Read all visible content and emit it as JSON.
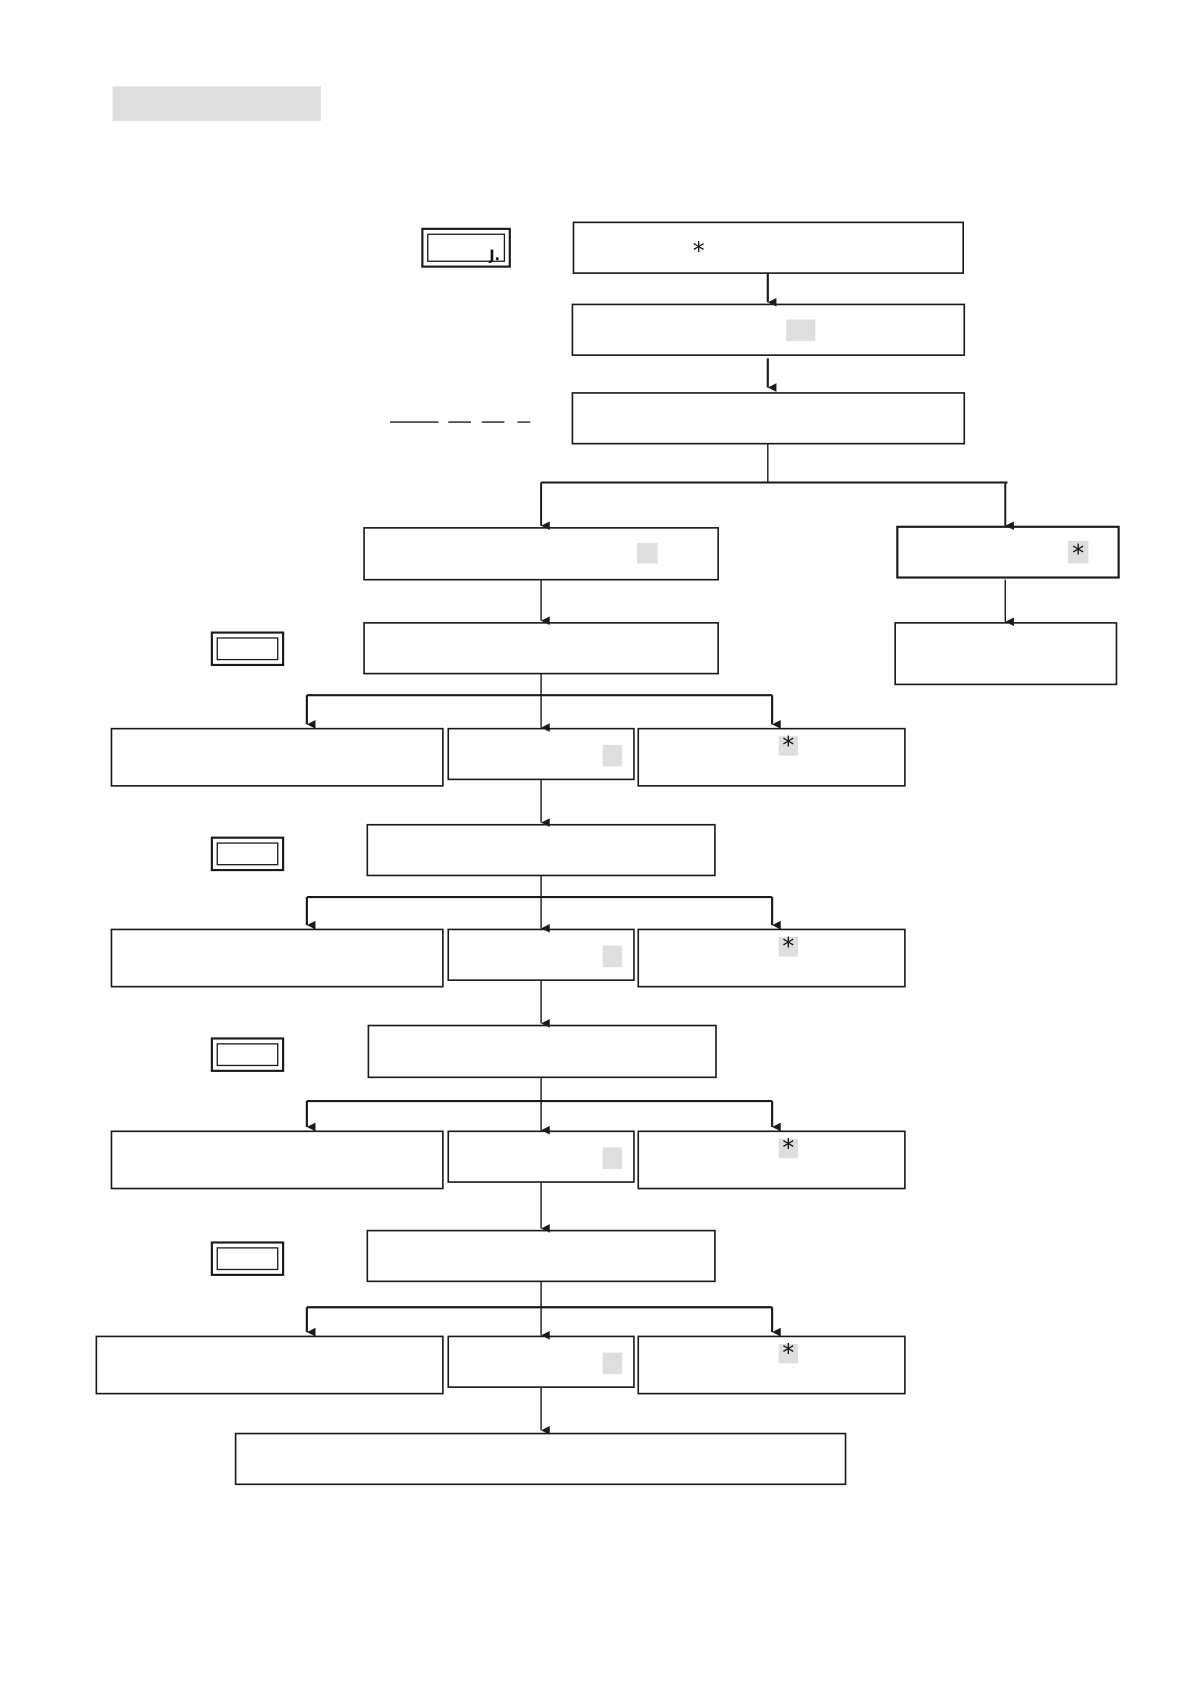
{
  "flowchart": {
    "asterisk": "*",
    "key_glyph": "J."
  },
  "colors": {
    "line": "#1a1a1a",
    "redaction": "#dedede",
    "background": "#ffffff"
  }
}
